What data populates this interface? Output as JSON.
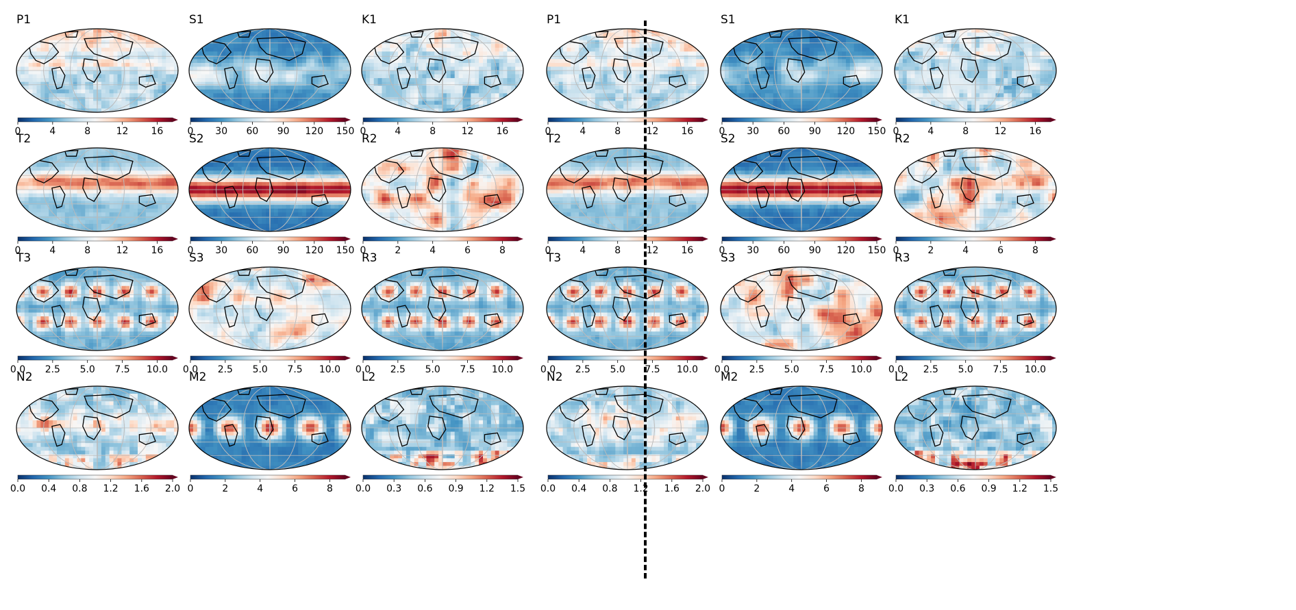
{
  "colormap": {
    "name": "RdBu_r",
    "stops": [
      "#08306b",
      "#2166ac",
      "#4393c3",
      "#92c5de",
      "#d1e5f0",
      "#f7f7f7",
      "#fddbc7",
      "#f4a582",
      "#d6604d",
      "#b2182b",
      "#67001f"
    ]
  },
  "colors": {
    "land_outline": "#000000",
    "graticule": "#bbbbbb",
    "divider": "#000000"
  },
  "halves": [
    {
      "panels": [
        {
          "label": "P1",
          "ticks": [
            "0",
            "4",
            "8",
            "12",
            "16"
          ],
          "pattern": "P1"
        },
        {
          "label": "S1",
          "ticks": [
            "0",
            "30",
            "60",
            "90",
            "120",
            "150"
          ],
          "pattern": "S1"
        },
        {
          "label": "K1",
          "ticks": [
            "0",
            "4",
            "8",
            "12",
            "16"
          ],
          "pattern": "K1"
        },
        {
          "label": "T2",
          "ticks": [
            "0",
            "4",
            "8",
            "12",
            "16"
          ],
          "pattern": "T2"
        },
        {
          "label": "S2",
          "ticks": [
            "0",
            "30",
            "60",
            "90",
            "120",
            "150"
          ],
          "pattern": "S2"
        },
        {
          "label": "R2",
          "ticks": [
            "0",
            "2",
            "4",
            "6",
            "8"
          ],
          "pattern": "R2"
        },
        {
          "label": "T3",
          "ticks": [
            "0.0",
            "2.5",
            "5.0",
            "7.5",
            "10.0"
          ],
          "pattern": "T3"
        },
        {
          "label": "S3",
          "ticks": [
            "0.0",
            "2.5",
            "5.0",
            "7.5",
            "10.0"
          ],
          "pattern": "S3"
        },
        {
          "label": "R3",
          "ticks": [
            "0.0",
            "2.5",
            "5.0",
            "7.5",
            "10.0"
          ],
          "pattern": "R3"
        },
        {
          "label": "N2",
          "ticks": [
            "0.0",
            "0.4",
            "0.8",
            "1.2",
            "1.6",
            "2.0"
          ],
          "pattern": "N2"
        },
        {
          "label": "M2",
          "ticks": [
            "0",
            "2",
            "4",
            "6",
            "8"
          ],
          "pattern": "M2"
        },
        {
          "label": "L2",
          "ticks": [
            "0.0",
            "0.3",
            "0.6",
            "0.9",
            "1.2",
            "1.5"
          ],
          "pattern": "L2"
        }
      ]
    },
    {
      "panels": [
        {
          "label": "P1",
          "ticks": [
            "0",
            "4",
            "8",
            "12",
            "16"
          ],
          "pattern": "P1"
        },
        {
          "label": "S1",
          "ticks": [
            "0",
            "30",
            "60",
            "90",
            "120",
            "150"
          ],
          "pattern": "S1"
        },
        {
          "label": "K1",
          "ticks": [
            "0",
            "4",
            "8",
            "12",
            "16"
          ],
          "pattern": "K1"
        },
        {
          "label": "T2",
          "ticks": [
            "0",
            "4",
            "8",
            "12",
            "16"
          ],
          "pattern": "T2"
        },
        {
          "label": "S2",
          "ticks": [
            "0",
            "30",
            "60",
            "90",
            "120",
            "150"
          ],
          "pattern": "S2"
        },
        {
          "label": "R2",
          "ticks": [
            "0",
            "2",
            "4",
            "6",
            "8"
          ],
          "pattern": "R2"
        },
        {
          "label": "T3",
          "ticks": [
            "0.0",
            "2.5",
            "5.0",
            "7.5",
            "10.0"
          ],
          "pattern": "T3"
        },
        {
          "label": "S3",
          "ticks": [
            "0.0",
            "2.5",
            "5.0",
            "7.5",
            "10.0"
          ],
          "pattern": "S3"
        },
        {
          "label": "R3",
          "ticks": [
            "0.0",
            "2.5",
            "5.0",
            "7.5",
            "10.0"
          ],
          "pattern": "R3"
        },
        {
          "label": "N2",
          "ticks": [
            "0.0",
            "0.4",
            "0.8",
            "1.2",
            "1.6",
            "2.0"
          ],
          "pattern": "N2"
        },
        {
          "label": "M2",
          "ticks": [
            "0",
            "2",
            "4",
            "6",
            "8"
          ],
          "pattern": "M2"
        },
        {
          "label": "L2",
          "ticks": [
            "0.0",
            "0.3",
            "0.6",
            "0.9",
            "1.2",
            "1.5"
          ],
          "pattern": "L2"
        }
      ]
    }
  ]
}
